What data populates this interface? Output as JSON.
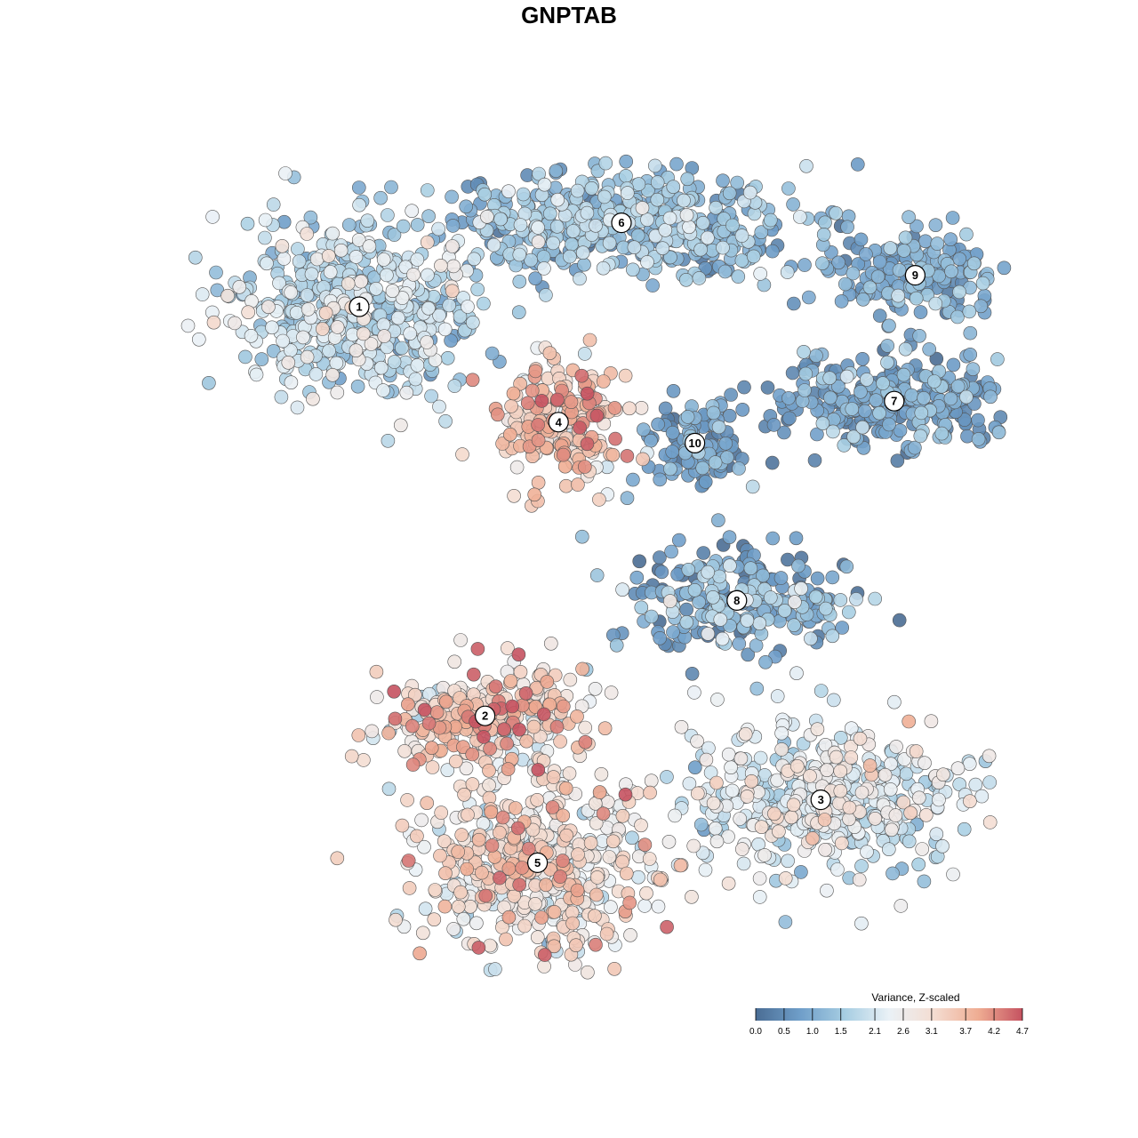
{
  "chart_data": {
    "type": "scatter",
    "title": "GNPTAB",
    "xlabel": "",
    "ylabel": "",
    "grid": false,
    "legend": {
      "title": "Variance, Z-scaled",
      "placement": "bottom-right",
      "range": [
        0.0,
        4.7
      ],
      "ticks": [
        "0.0",
        "0.5",
        "1.0",
        "1.5",
        "2.1",
        "2.6",
        "3.1",
        "3.7",
        "4.2",
        "4.7"
      ],
      "tick_values": [
        0.0,
        0.5,
        1.0,
        1.5,
        2.1,
        2.6,
        3.1,
        3.7,
        4.2,
        4.7
      ],
      "colors": [
        "#4a6d94",
        "#6f9ec9",
        "#a6cde2",
        "#eaf1f6",
        "#f4ddd2",
        "#efad93",
        "#c55260"
      ]
    },
    "clusters": [
      {
        "label": "1",
        "center": [
          -2.0,
          2.5
        ],
        "mean_variance": 1.8
      },
      {
        "label": "2",
        "center": [
          -0.8,
          -1.4
        ],
        "mean_variance": 3.2
      },
      {
        "label": "3",
        "center": [
          2.4,
          -2.2
        ],
        "mean_variance": 2.2
      },
      {
        "label": "4",
        "center": [
          -0.1,
          1.4
        ],
        "mean_variance": 3.4
      },
      {
        "label": "5",
        "center": [
          -0.3,
          -2.8
        ],
        "mean_variance": 2.9
      },
      {
        "label": "6",
        "center": [
          0.5,
          3.3
        ],
        "mean_variance": 1.3
      },
      {
        "label": "7",
        "center": [
          3.1,
          1.6
        ],
        "mean_variance": 0.9
      },
      {
        "label": "8",
        "center": [
          1.6,
          -0.3
        ],
        "mean_variance": 1.0
      },
      {
        "label": "9",
        "center": [
          3.3,
          2.8
        ],
        "mean_variance": 0.9
      },
      {
        "label": "10",
        "center": [
          1.2,
          1.2
        ],
        "mean_variance": 0.8
      }
    ]
  }
}
